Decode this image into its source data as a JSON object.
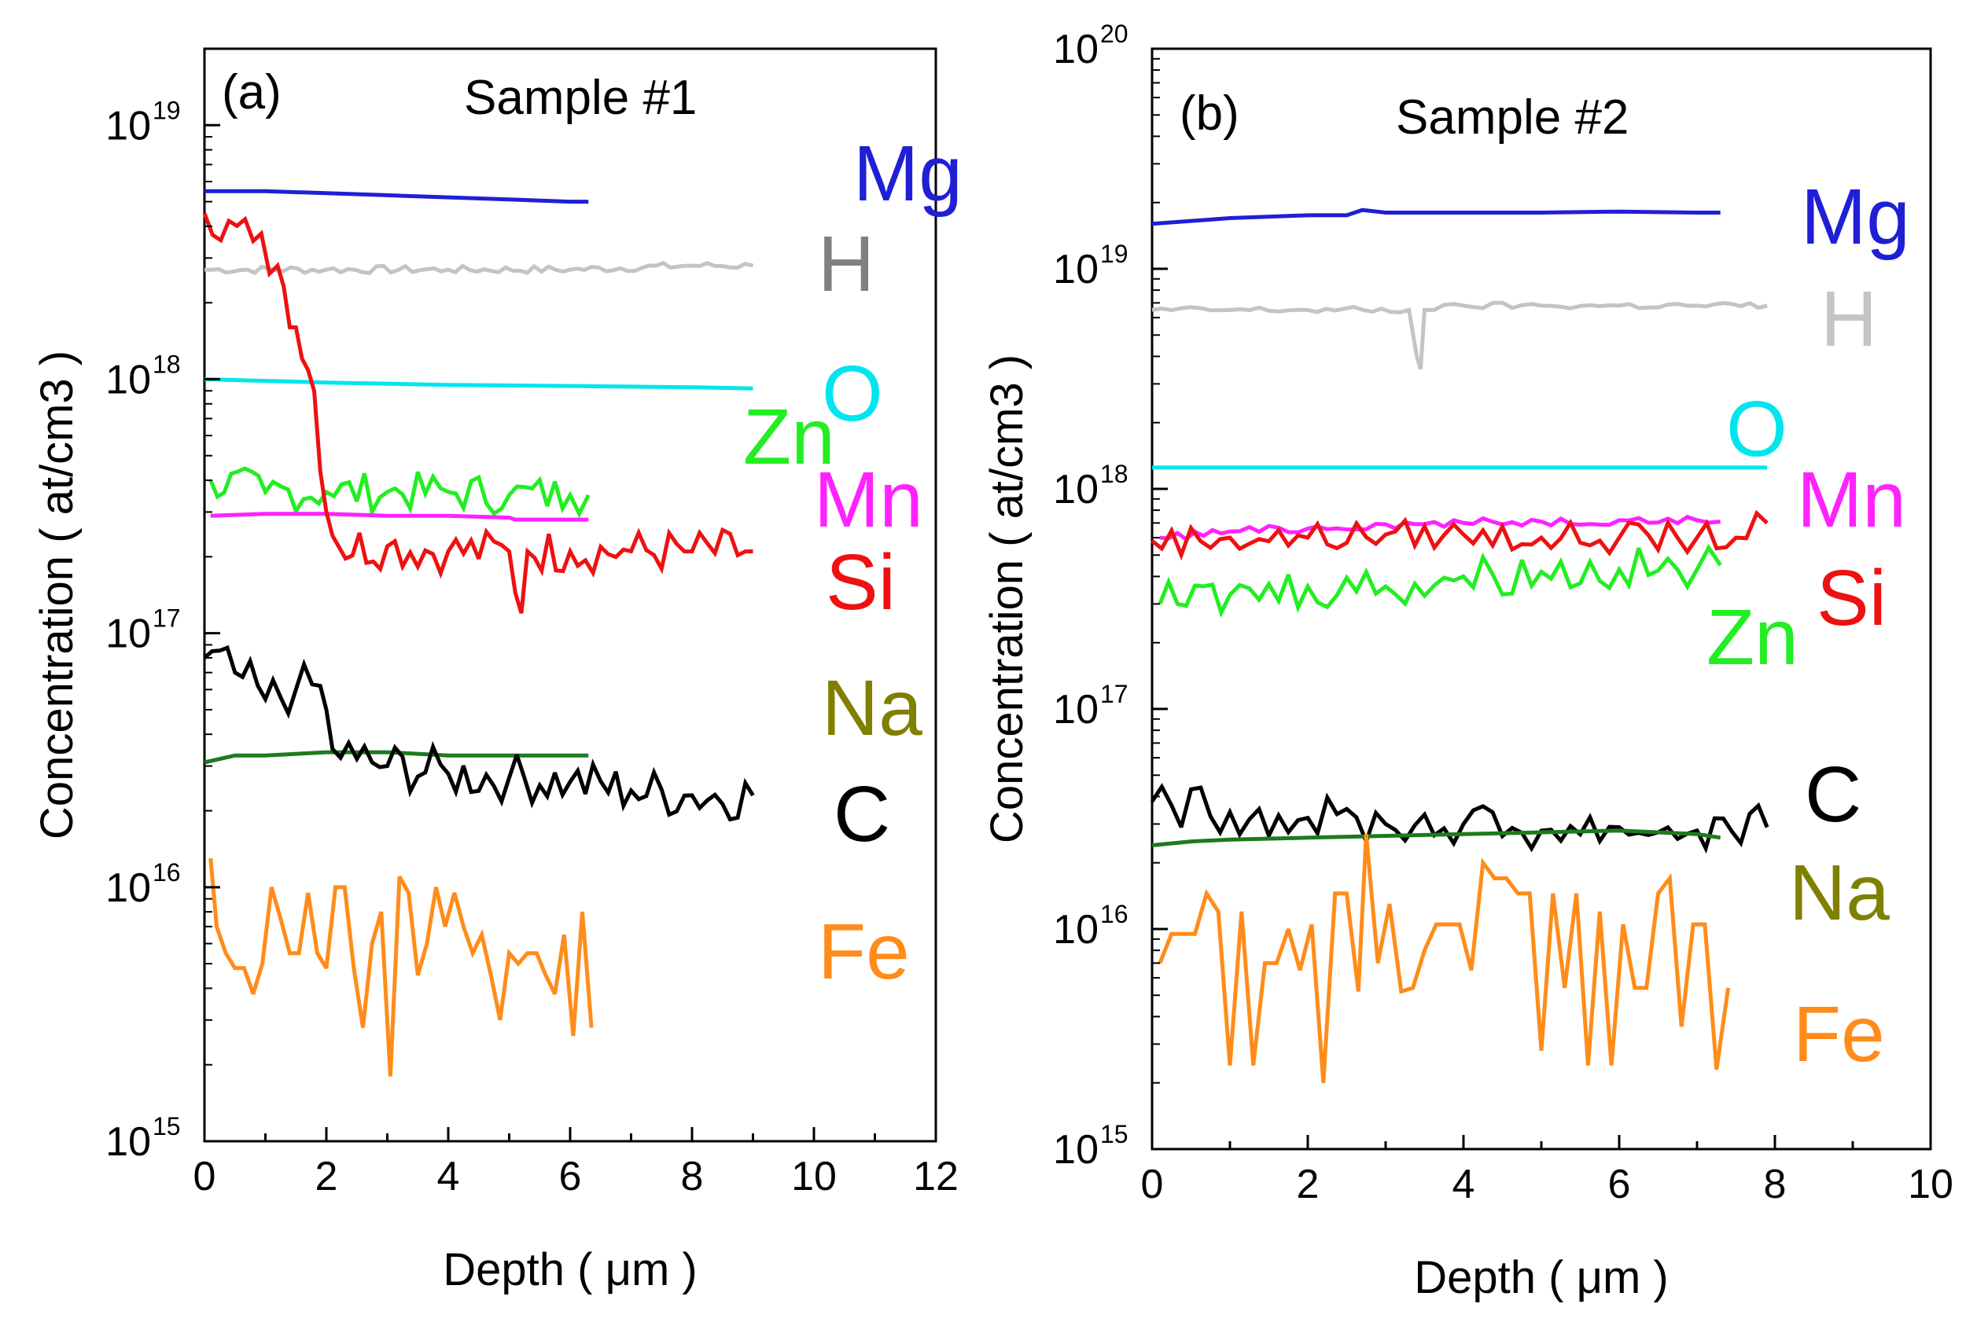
{
  "chart_data": [
    {
      "type": "line",
      "panel_label": "(a)",
      "title": "Sample #1",
      "xlabel": "Depth ( μm )",
      "ylabel": "Concentration ( at/cm3 )",
      "yscale": "log",
      "xlim": [
        0,
        12
      ],
      "ylim": [
        1000000000000000.0,
        2e+19
      ],
      "x_ticks": [
        "0",
        "2",
        "4",
        "6",
        "8",
        "10",
        "12"
      ],
      "y_ticks": [
        {
          "base": "10",
          "exp": "15"
        },
        {
          "base": "10",
          "exp": "16"
        },
        {
          "base": "10",
          "exp": "17"
        },
        {
          "base": "10",
          "exp": "18"
        },
        {
          "base": "10",
          "exp": "19"
        }
      ],
      "series": [
        {
          "name": "Mg",
          "color": "#1f1fd6",
          "label_color": "#1f1fd6",
          "noise": 0,
          "x": [
            0,
            1,
            2,
            3,
            4,
            5,
            6,
            6.3
          ],
          "y": [
            5.5e+18,
            5.5e+18,
            5.4e+18,
            5.3e+18,
            5.2e+18,
            5.1e+18,
            5e+18,
            5e+18
          ]
        },
        {
          "name": "H",
          "color": "#c4c4c4",
          "label_color": "#808080",
          "noise": 0.015,
          "x": [
            0,
            2,
            4,
            6,
            8,
            9
          ],
          "y": [
            2.7e+18,
            2.7e+18,
            2.7e+18,
            2.7e+18,
            2.8e+18,
            2.8e+18
          ]
        },
        {
          "name": "O",
          "color": "#00e5ee",
          "label_color": "#00e5ee",
          "noise": 0,
          "x": [
            0,
            2,
            4,
            6,
            8,
            9
          ],
          "y": [
            1e+18,
            9.7e+17,
            9.5e+17,
            9.4e+17,
            9.3e+17,
            9.2e+17
          ]
        },
        {
          "name": "Zn",
          "color": "#22ee22",
          "label_color": "#22ee22",
          "noise": 0.08,
          "x": [
            0.1,
            1,
            2,
            3,
            4,
            5,
            6,
            6.3
          ],
          "y": [
            4e+17,
            3.6e+17,
            3.6e+17,
            3.6e+17,
            3.6e+17,
            3.5e+17,
            3.5e+17,
            3.5e+17
          ]
        },
        {
          "name": "Mn",
          "color": "#ff22ff",
          "label_color": "#ff22ff",
          "noise": 0,
          "x": [
            0.1,
            1,
            2,
            3,
            4,
            5,
            5.1,
            5.2,
            5.3,
            6,
            6.3
          ],
          "y": [
            2.9e+17,
            2.95e+17,
            2.95e+17,
            2.9e+17,
            2.9e+17,
            2.85e+17,
            2.8e+17,
            2.8e+17,
            2.8e+17,
            2.8e+17,
            2.8e+17
          ]
        },
        {
          "name": "Si",
          "color": "#ee1111",
          "label_color": "#ee1111",
          "noise": 0.09,
          "x": [
            0,
            0.4,
            0.8,
            1.2,
            1.5,
            1.8,
            2.0,
            2.2,
            3,
            4,
            5,
            5.2,
            5.3,
            6,
            7,
            8,
            9
          ],
          "y": [
            4.5e+18,
            4.2e+18,
            3.5e+18,
            2.8e+18,
            1.6e+18,
            9e+17,
            3e+17,
            2.2e+17,
            2.2e+17,
            2.1e+17,
            2.1e+17,
            1.2e+17,
            2.1e+17,
            2.1e+17,
            2.1e+17,
            2.1e+17,
            2.1e+17
          ]
        },
        {
          "name": "Na",
          "color": "#1e7a1e",
          "label_color": "#7f7f00",
          "noise": 0,
          "x": [
            0,
            0.5,
            1,
            2,
            3,
            4,
            5,
            6,
            6.3
          ],
          "y": [
            3.1e+16,
            3.3e+16,
            3.3e+16,
            3.4e+16,
            3.4e+16,
            3.3e+16,
            3.3e+16,
            3.3e+16,
            3.3e+16
          ]
        },
        {
          "name": "C",
          "color": "#000000",
          "label_color": "#000000",
          "noise": 0.1,
          "x": [
            0,
            0.5,
            1,
            1.5,
            1.9,
            2.1,
            2.5,
            3,
            4,
            5,
            6,
            7,
            8,
            9
          ],
          "y": [
            8e+16,
            7e+16,
            5.5e+16,
            6e+16,
            6.2e+16,
            3.5e+16,
            3.2e+16,
            3e+16,
            2.8e+16,
            2.7e+16,
            2.6e+16,
            2.4e+16,
            2.3e+16,
            2.3e+16
          ]
        },
        {
          "name": "Fe",
          "color": "#ff8c1a",
          "label_color": "#ff8c1a",
          "noise": 0,
          "x": [
            0.1,
            0.2,
            0.35,
            0.5,
            0.65,
            0.8,
            0.95,
            1.1,
            1.25,
            1.4,
            1.55,
            1.7,
            1.85,
            2.0,
            2.15,
            2.3,
            2.45,
            2.6,
            2.75,
            2.9,
            3.05,
            3.2,
            3.35,
            3.5,
            3.65,
            3.8,
            3.95,
            4.1,
            4.25,
            4.4,
            4.55,
            4.7,
            4.85,
            5.0,
            5.15,
            5.3,
            5.45,
            5.6,
            5.75,
            5.9,
            6.05,
            6.2,
            6.35
          ],
          "y": [
            1.3e+16,
            7000000000000000.0,
            5500000000000000.0,
            4800000000000000.0,
            4800000000000000.0,
            3800000000000000.0,
            5000000000000000.0,
            1e+16,
            7500000000000000.0,
            5500000000000000.0,
            5500000000000000.0,
            9500000000000000.0,
            5500000000000000.0,
            4800000000000000.0,
            1e+16,
            1e+16,
            4800000000000000.0,
            2800000000000000.0,
            6000000000000000.0,
            8000000000000000.0,
            1800000000000000.0,
            1.1e+16,
            9500000000000000.0,
            4500000000000000.0,
            6000000000000000.0,
            1e+16,
            7000000000000000.0,
            9500000000000000.0,
            7000000000000000.0,
            5500000000000000.0,
            6500000000000000.0,
            4500000000000000.0,
            3000000000000000.0,
            5500000000000000.0,
            5000000000000000.0,
            5500000000000000.0,
            5500000000000000.0,
            4500000000000000.0,
            3800000000000000.0,
            6500000000000000.0,
            2600000000000000.0,
            8000000000000000.0,
            2800000000000000.0
          ]
        }
      ]
    },
    {
      "type": "line",
      "panel_label": "(b)",
      "title": "Sample #2",
      "xlabel": "Depth ( μm )",
      "ylabel": "Concentration ( at/cm3 )",
      "yscale": "log",
      "xlim": [
        0,
        10
      ],
      "ylim": [
        1000000000000000.0,
        1e+20
      ],
      "x_ticks": [
        "0",
        "2",
        "4",
        "6",
        "8",
        "10"
      ],
      "y_ticks": [
        {
          "base": "10",
          "exp": "15"
        },
        {
          "base": "10",
          "exp": "16"
        },
        {
          "base": "10",
          "exp": "17"
        },
        {
          "base": "10",
          "exp": "18"
        },
        {
          "base": "10",
          "exp": "19"
        },
        {
          "base": "10",
          "exp": "20"
        }
      ],
      "series": [
        {
          "name": "Mg",
          "color": "#1f1fd6",
          "label_color": "#1f1fd6",
          "noise": 0,
          "x": [
            0,
            1,
            2,
            2.5,
            2.7,
            3,
            4,
            5,
            6,
            7,
            7.3
          ],
          "y": [
            1.6e+19,
            1.7e+19,
            1.75e+19,
            1.75e+19,
            1.85e+19,
            1.8e+19,
            1.8e+19,
            1.8e+19,
            1.82e+19,
            1.8e+19,
            1.8e+19
          ]
        },
        {
          "name": "H",
          "color": "#c4c4c4",
          "label_color": "#c4c4c4",
          "noise": 0.015,
          "x": [
            0,
            1,
            2,
            3.3,
            3.4,
            3.45,
            3.5,
            4,
            5,
            6,
            7,
            7.9
          ],
          "y": [
            6.5e+18,
            6.5e+18,
            6.5e+18,
            6.5e+18,
            4e+18,
            3.5e+18,
            6.5e+18,
            6.8e+18,
            6.8e+18,
            6.8e+18,
            6.8e+18,
            6.8e+18
          ]
        },
        {
          "name": "O",
          "color": "#00e5ee",
          "label_color": "#00e5ee",
          "noise": 0,
          "x": [
            0,
            2,
            4,
            6,
            7.9
          ],
          "y": [
            1.25e+18,
            1.25e+18,
            1.25e+18,
            1.25e+18,
            1.25e+18
          ]
        },
        {
          "name": "Mn",
          "color": "#ff22ff",
          "label_color": "#ff22ff",
          "noise": 0.02,
          "x": [
            0.1,
            1,
            2,
            3,
            4,
            5,
            6,
            7,
            7.3
          ],
          "y": [
            6e+17,
            6.4e+17,
            6.6e+17,
            6.9e+17,
            7e+17,
            7.1e+17,
            7.2e+17,
            7.2e+17,
            7.1e+17
          ]
        },
        {
          "name": "Si",
          "color": "#ee1111",
          "label_color": "#ee1111",
          "noise": 0.07,
          "x": [
            0,
            1,
            2,
            3,
            4,
            5,
            6,
            7,
            7.5,
            7.9
          ],
          "y": [
            5.8e+17,
            6e+17,
            6e+17,
            6.2e+17,
            6.2e+17,
            6e+17,
            6e+17,
            6e+17,
            6e+17,
            7e+17
          ]
        },
        {
          "name": "Zn",
          "color": "#22ee22",
          "label_color": "#22ee22",
          "noise": 0.1,
          "x": [
            0.1,
            1,
            2,
            3,
            4,
            5,
            6,
            7,
            7.3
          ],
          "y": [
            3e+17,
            3.3e+17,
            3.6e+17,
            3.6e+17,
            4e+17,
            4.2e+17,
            4.3e+17,
            4.3e+17,
            4.5e+17
          ]
        },
        {
          "name": "C",
          "color": "#000000",
          "label_color": "#000000",
          "noise": 0.1,
          "x": [
            0,
            1,
            2,
            3,
            4,
            5,
            6,
            7,
            7.9
          ],
          "y": [
            3.8e+16,
            3.4e+16,
            3.2e+16,
            3e+16,
            3e+16,
            2.8e+16,
            2.9e+16,
            2.8e+16,
            2.9e+16
          ]
        },
        {
          "name": "Na",
          "color": "#1e7a1e",
          "label_color": "#7f7f00",
          "noise": 0,
          "x": [
            0,
            0.5,
            1,
            2,
            3,
            4,
            5,
            6,
            7,
            7.3
          ],
          "y": [
            2.4e+16,
            2.5e+16,
            2.55e+16,
            2.6e+16,
            2.65e+16,
            2.7e+16,
            2.75e+16,
            2.8e+16,
            2.7e+16,
            2.6e+16
          ]
        },
        {
          "name": "Fe",
          "color": "#ff8c1a",
          "label_color": "#ff8c1a",
          "noise": 0,
          "x": [
            0.1,
            0.25,
            0.4,
            0.55,
            0.7,
            0.85,
            1.0,
            1.15,
            1.3,
            1.45,
            1.6,
            1.75,
            1.9,
            2.05,
            2.2,
            2.35,
            2.5,
            2.65,
            2.75,
            2.9,
            3.05,
            3.2,
            3.35,
            3.5,
            3.65,
            3.8,
            3.95,
            4.1,
            4.25,
            4.4,
            4.55,
            4.7,
            4.85,
            5.0,
            5.15,
            5.3,
            5.45,
            5.6,
            5.75,
            5.9,
            6.05,
            6.2,
            6.35,
            6.5,
            6.65,
            6.8,
            6.95,
            7.1,
            7.25,
            7.4
          ],
          "y": [
            7000000000000000.0,
            9500000000000000.0,
            9500000000000000.0,
            9500000000000000.0,
            1.45e+16,
            1.2e+16,
            2400000000000000.0,
            1.2e+16,
            2400000000000000.0,
            7000000000000000.0,
            7000000000000000.0,
            1e+16,
            6500000000000000.0,
            1.05e+16,
            2000000000000000.0,
            1.45e+16,
            1.45e+16,
            5200000000000000.0,
            2.7e+16,
            7000000000000000.0,
            1.3e+16,
            5200000000000000.0,
            5400000000000000.0,
            8000000000000000.0,
            1.05e+16,
            1.05e+16,
            1.05e+16,
            6500000000000000.0,
            2e+16,
            1.7e+16,
            1.7e+16,
            1.45e+16,
            1.45e+16,
            2800000000000000.0,
            1.45e+16,
            5400000000000000.0,
            1.45e+16,
            2400000000000000.0,
            1.2e+16,
            2400000000000000.0,
            1.05e+16,
            5400000000000000.0,
            5400000000000000.0,
            1.45e+16,
            1.7e+16,
            3600000000000000.0,
            1.05e+16,
            1.05e+16,
            2300000000000000.0,
            5400000000000000.0
          ]
        }
      ]
    }
  ]
}
